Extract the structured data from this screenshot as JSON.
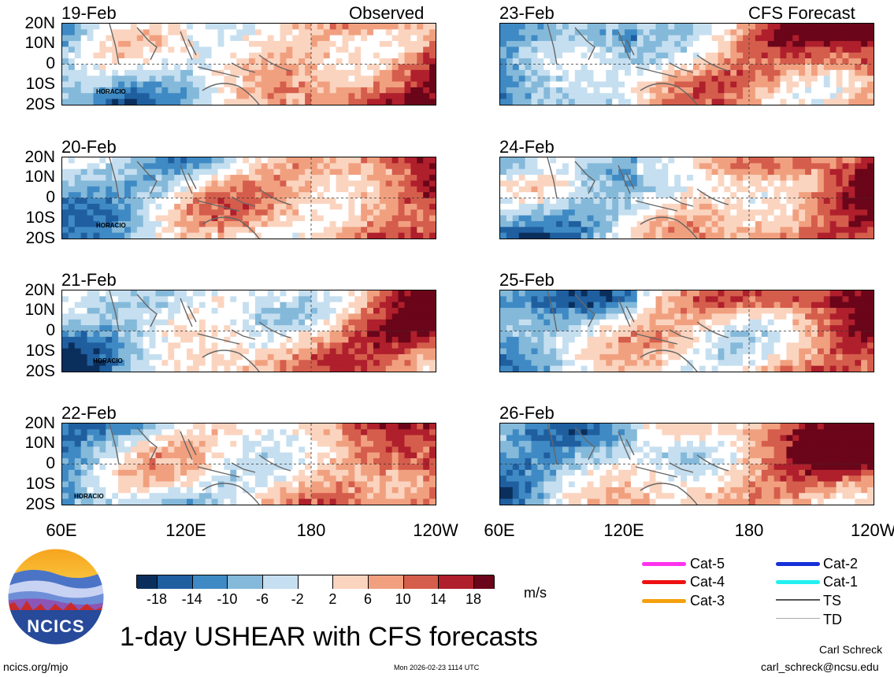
{
  "chart_data": {
    "type": "heatmap",
    "title": "1-day USHEAR with CFS forecasts",
    "units": "m/s",
    "column_labels": {
      "observed": "Observed",
      "forecast": "CFS Forecast"
    },
    "x_tick_labels": [
      "60E",
      "120E",
      "180",
      "120W"
    ],
    "y_tick_labels": [
      "20N",
      "10N",
      "0",
      "10S",
      "20S"
    ],
    "colorbar": {
      "ticks": [
        "-18",
        "-14",
        "-10",
        "-6",
        "-2",
        "2",
        "6",
        "10",
        "14",
        "18"
      ],
      "colors": [
        "#0b2f5c",
        "#1f5fa0",
        "#3f8ac4",
        "#84b9da",
        "#c5dff0",
        "#ffffff",
        "#fbd4bf",
        "#f1a07f",
        "#d55d4c",
        "#af1f2c",
        "#6b0519"
      ]
    },
    "observed_panels": [
      {
        "date": "19-Feb",
        "storm": "HORACIO"
      },
      {
        "date": "20-Feb",
        "storm": "HORACIO"
      },
      {
        "date": "21-Feb",
        "storm": "HORACIO"
      },
      {
        "date": "22-Feb",
        "storm": "HORACIO"
      }
    ],
    "forecast_panels": [
      {
        "date": "23-Feb"
      },
      {
        "date": "24-Feb"
      },
      {
        "date": "25-Feb"
      },
      {
        "date": "26-Feb"
      }
    ],
    "track_legend": [
      {
        "label": "Cat-5",
        "color": "#ff33ee"
      },
      {
        "label": "Cat-4",
        "color": "#ee1111"
      },
      {
        "label": "Cat-3",
        "color": "#f5a00e"
      },
      {
        "label": "Cat-2",
        "color": "#1630d8"
      },
      {
        "label": "Cat-1",
        "color": "#22f0f0"
      },
      {
        "label": "TS",
        "color": "#555555"
      },
      {
        "label": "TD",
        "color": "#aaaaaa"
      }
    ]
  },
  "logo": {
    "text": "NCICS"
  },
  "footer": {
    "site": "ncics.org/mjo",
    "timestamp": "Mon 2026-02-23 1114 UTC",
    "author": "Carl Schreck",
    "email": "carl_schreck@ncsu.edu"
  }
}
